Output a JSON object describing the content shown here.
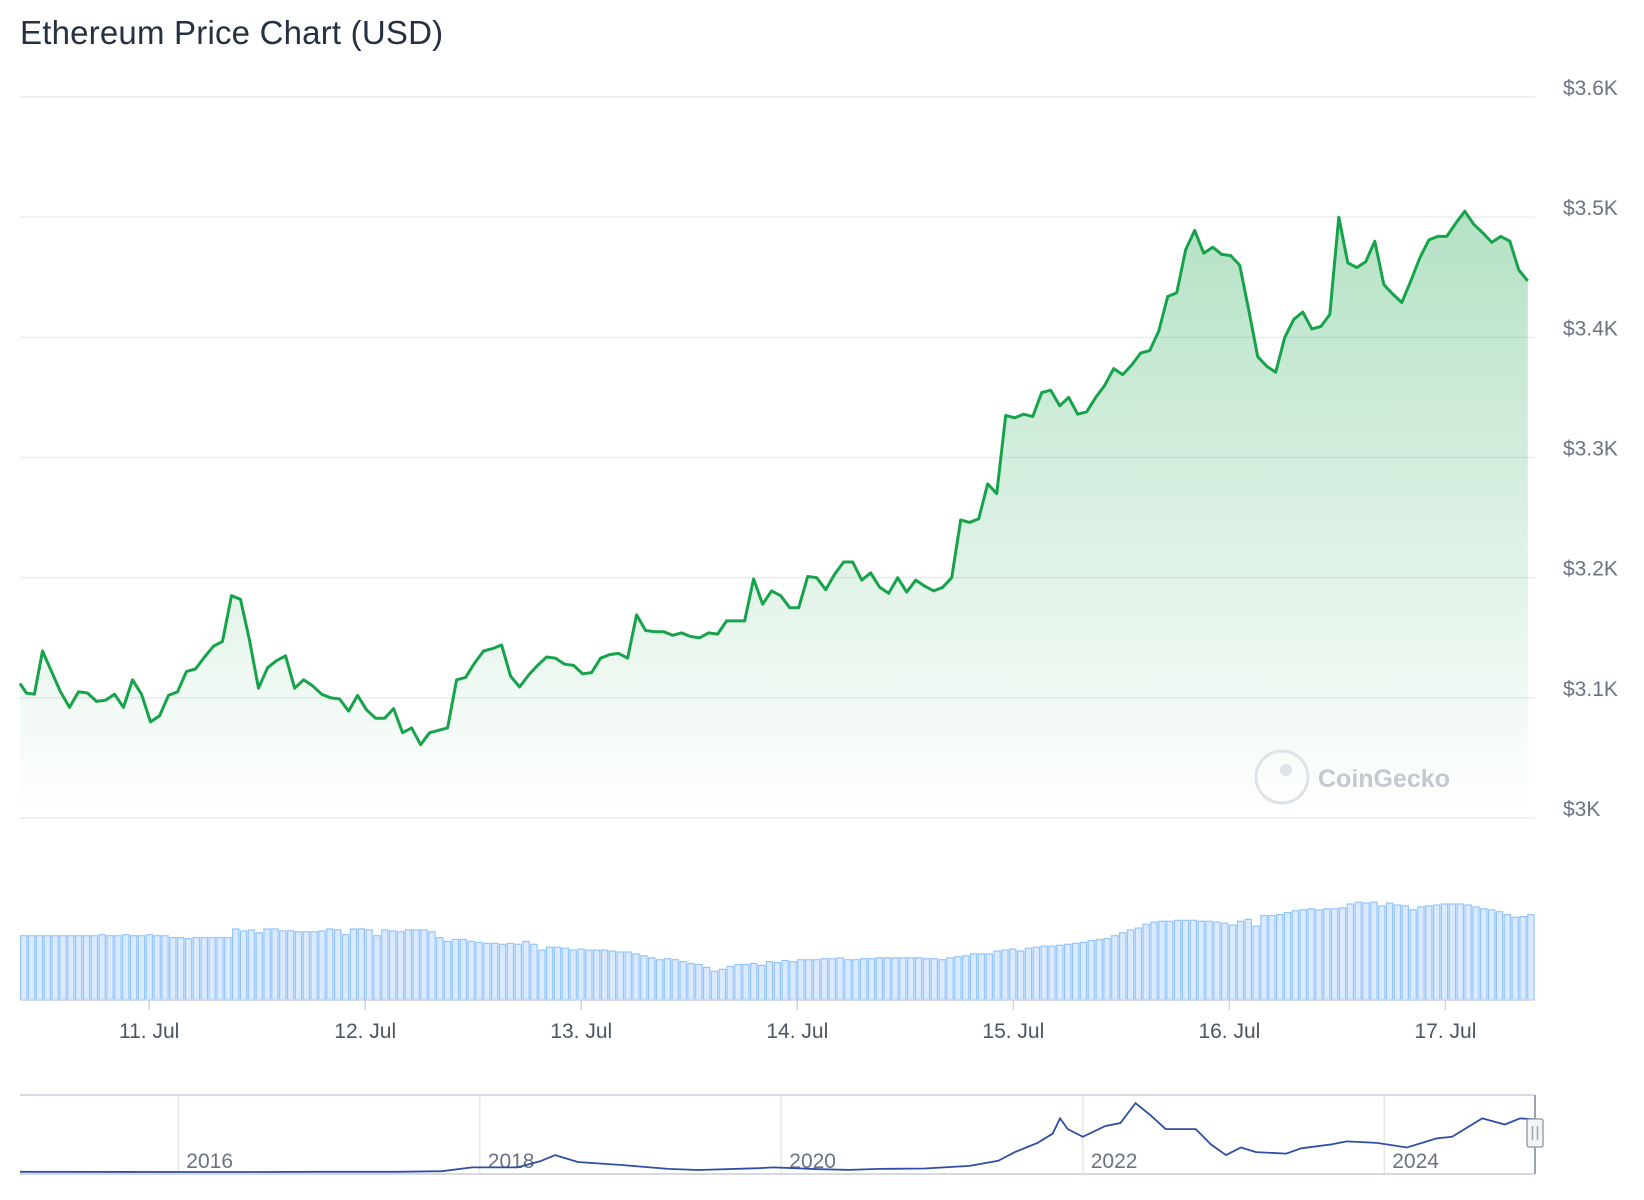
{
  "title": "Ethereum Price Chart (USD)",
  "watermark": "CoinGecko",
  "chart_data": {
    "type": "area",
    "title": "Ethereum Price Chart (USD)",
    "xlabel": "",
    "ylabel": "",
    "ylim": [
      3000,
      3600
    ],
    "y_ticks": [
      {
        "value": 3600,
        "label": "$3.6K"
      },
      {
        "value": 3500,
        "label": "$3.5K"
      },
      {
        "value": 3400,
        "label": "$3.4K"
      },
      {
        "value": 3300,
        "label": "$3.3K"
      },
      {
        "value": 3200,
        "label": "$3.2K"
      },
      {
        "value": 3100,
        "label": "$3.1K"
      },
      {
        "value": 3000,
        "label": "$3K"
      }
    ],
    "x_ticks": [
      {
        "label": "11. Jul",
        "t": 23.35
      },
      {
        "label": "12. Jul",
        "t": 47.35
      },
      {
        "label": "13. Jul",
        "t": 71.35
      },
      {
        "label": "14. Jul",
        "t": 95.35
      },
      {
        "label": "15. Jul",
        "t": 119.35
      },
      {
        "label": "16. Jul",
        "t": 143.35
      },
      {
        "label": "17. Jul",
        "t": 167.35
      }
    ],
    "x_range_hours": [
      9.0,
      177.3
    ],
    "series": [
      {
        "color": "#16a34a",
        "points": [
          [
            9.0,
            3112
          ],
          [
            9.7,
            3104
          ],
          [
            10.6,
            3103
          ],
          [
            11.5,
            3139
          ],
          [
            13.5,
            3105
          ],
          [
            14.5,
            3092
          ],
          [
            15.5,
            3105
          ],
          [
            16.5,
            3104
          ],
          [
            17.5,
            3097
          ],
          [
            18.5,
            3098
          ],
          [
            19.5,
            3103
          ],
          [
            20.5,
            3092
          ],
          [
            21.5,
            3115
          ],
          [
            22.5,
            3103
          ],
          [
            23.5,
            3080
          ],
          [
            24.5,
            3085
          ],
          [
            25.5,
            3102
          ],
          [
            26.5,
            3105
          ],
          [
            27.5,
            3122
          ],
          [
            28.5,
            3124
          ],
          [
            29.5,
            3134
          ],
          [
            30.5,
            3143
          ],
          [
            31.5,
            3147
          ],
          [
            32.5,
            3185
          ],
          [
            33.5,
            3182
          ],
          [
            34.5,
            3148
          ],
          [
            35.5,
            3108
          ],
          [
            36.5,
            3125
          ],
          [
            37.5,
            3131
          ],
          [
            38.5,
            3135
          ],
          [
            39.5,
            3108
          ],
          [
            40.5,
            3115
          ],
          [
            41.5,
            3110
          ],
          [
            42.5,
            3103
          ],
          [
            43.5,
            3100
          ],
          [
            44.5,
            3099
          ],
          [
            45.5,
            3089
          ],
          [
            46.5,
            3102
          ],
          [
            47.5,
            3090
          ],
          [
            48.5,
            3083
          ],
          [
            49.5,
            3083
          ],
          [
            50.5,
            3091
          ],
          [
            51.5,
            3071
          ],
          [
            52.5,
            3075
          ],
          [
            53.5,
            3061
          ],
          [
            54.5,
            3071
          ],
          [
            55.5,
            3073
          ],
          [
            56.5,
            3075
          ],
          [
            57.5,
            3115
          ],
          [
            58.5,
            3117
          ],
          [
            59.5,
            3129
          ],
          [
            60.5,
            3139
          ],
          [
            61.5,
            3141
          ],
          [
            62.5,
            3144
          ],
          [
            63.5,
            3118
          ],
          [
            64.5,
            3109
          ],
          [
            65.5,
            3119
          ],
          [
            66.5,
            3127
          ],
          [
            67.5,
            3134
          ],
          [
            68.5,
            3133
          ],
          [
            69.5,
            3128
          ],
          [
            70.5,
            3127
          ],
          [
            71.5,
            3120
          ],
          [
            72.5,
            3121
          ],
          [
            73.5,
            3133
          ],
          [
            74.5,
            3136
          ],
          [
            75.5,
            3137
          ],
          [
            76.5,
            3133
          ],
          [
            77.5,
            3169
          ],
          [
            78.5,
            3156
          ],
          [
            79.5,
            3155
          ],
          [
            80.5,
            3155
          ],
          [
            81.5,
            3152
          ],
          [
            82.5,
            3154
          ],
          [
            83.5,
            3151
          ],
          [
            84.5,
            3150
          ],
          [
            85.5,
            3154
          ],
          [
            86.5,
            3153
          ],
          [
            87.5,
            3164
          ],
          [
            88.5,
            3164
          ],
          [
            89.5,
            3164
          ],
          [
            90.5,
            3199
          ],
          [
            91.5,
            3178
          ],
          [
            92.5,
            3189
          ],
          [
            93.5,
            3185
          ],
          [
            94.5,
            3175
          ],
          [
            95.5,
            3175
          ],
          [
            96.5,
            3201
          ],
          [
            97.5,
            3200
          ],
          [
            98.5,
            3190
          ],
          [
            99.5,
            3203
          ],
          [
            100.5,
            3213
          ],
          [
            101.5,
            3213
          ],
          [
            102.5,
            3198
          ],
          [
            103.5,
            3204
          ],
          [
            104.5,
            3192
          ],
          [
            105.5,
            3187
          ],
          [
            106.5,
            3200
          ],
          [
            107.5,
            3188
          ],
          [
            108.5,
            3198
          ],
          [
            109.5,
            3193
          ],
          [
            110.5,
            3189
          ],
          [
            111.5,
            3192
          ],
          [
            112.5,
            3200
          ],
          [
            113.5,
            3248
          ],
          [
            114.5,
            3246
          ],
          [
            115.5,
            3249
          ],
          [
            116.5,
            3278
          ],
          [
            117.5,
            3270
          ],
          [
            118.5,
            3335
          ],
          [
            119.5,
            3333
          ],
          [
            120.5,
            3336
          ],
          [
            121.5,
            3334
          ],
          [
            122.5,
            3354
          ],
          [
            123.5,
            3356
          ],
          [
            124.5,
            3343
          ],
          [
            125.5,
            3350
          ],
          [
            126.5,
            3336
          ],
          [
            127.5,
            3338
          ],
          [
            128.5,
            3350
          ],
          [
            129.5,
            3360
          ],
          [
            130.5,
            3374
          ],
          [
            131.5,
            3369
          ],
          [
            132.5,
            3377
          ],
          [
            133.5,
            3387
          ],
          [
            134.5,
            3389
          ],
          [
            135.5,
            3405
          ],
          [
            136.5,
            3434
          ],
          [
            137.5,
            3437
          ],
          [
            138.5,
            3473
          ],
          [
            139.5,
            3489
          ],
          [
            140.5,
            3470
          ],
          [
            141.5,
            3475
          ],
          [
            142.5,
            3469
          ],
          [
            143.5,
            3468
          ],
          [
            144.5,
            3460
          ],
          [
            145.5,
            3423
          ],
          [
            146.5,
            3384
          ],
          [
            147.5,
            3376
          ],
          [
            148.5,
            3371
          ],
          [
            149.5,
            3400
          ],
          [
            150.5,
            3415
          ],
          [
            151.5,
            3421
          ],
          [
            152.5,
            3407
          ],
          [
            153.5,
            3409
          ],
          [
            154.5,
            3419
          ],
          [
            155.5,
            3500
          ],
          [
            156.5,
            3462
          ],
          [
            157.5,
            3458
          ],
          [
            158.5,
            3463
          ],
          [
            159.5,
            3480
          ],
          [
            160.5,
            3444
          ],
          [
            161.5,
            3436
          ],
          [
            162.5,
            3429
          ],
          [
            163.5,
            3447
          ],
          [
            164.5,
            3466
          ],
          [
            165.5,
            3481
          ],
          [
            166.5,
            3484
          ],
          [
            167.5,
            3484
          ],
          [
            168.5,
            3495
          ],
          [
            169.5,
            3505
          ],
          [
            170.5,
            3494
          ],
          [
            171.5,
            3487
          ],
          [
            172.5,
            3479
          ],
          [
            173.5,
            3484
          ],
          [
            174.5,
            3480
          ],
          [
            175.5,
            3456
          ],
          [
            176.5,
            3447
          ]
        ]
      }
    ],
    "volume": {
      "color": "#93c5fd",
      "values": [
        0.67,
        0.67,
        0.67,
        0.67,
        0.67,
        0.67,
        0.67,
        0.67,
        0.67,
        0.67,
        0.68,
        0.67,
        0.67,
        0.68,
        0.67,
        0.67,
        0.68,
        0.67,
        0.67,
        0.65,
        0.65,
        0.64,
        0.65,
        0.65,
        0.65,
        0.65,
        0.65,
        0.74,
        0.72,
        0.73,
        0.7,
        0.74,
        0.74,
        0.72,
        0.72,
        0.71,
        0.71,
        0.71,
        0.72,
        0.74,
        0.73,
        0.68,
        0.74,
        0.74,
        0.73,
        0.67,
        0.73,
        0.72,
        0.71,
        0.73,
        0.73,
        0.73,
        0.71,
        0.65,
        0.61,
        0.63,
        0.63,
        0.61,
        0.6,
        0.59,
        0.59,
        0.58,
        0.59,
        0.58,
        0.61,
        0.58,
        0.52,
        0.55,
        0.55,
        0.54,
        0.52,
        0.53,
        0.52,
        0.52,
        0.52,
        0.51,
        0.5,
        0.5,
        0.48,
        0.46,
        0.44,
        0.42,
        0.43,
        0.42,
        0.4,
        0.38,
        0.37,
        0.34,
        0.3,
        0.32,
        0.35,
        0.37,
        0.37,
        0.38,
        0.36,
        0.4,
        0.39,
        0.41,
        0.4,
        0.42,
        0.42,
        0.42,
        0.43,
        0.43,
        0.44,
        0.42,
        0.42,
        0.43,
        0.43,
        0.44,
        0.44,
        0.44,
        0.44,
        0.44,
        0.44,
        0.43,
        0.43,
        0.42,
        0.44,
        0.45,
        0.46,
        0.48,
        0.48,
        0.48,
        0.51,
        0.52,
        0.53,
        0.51,
        0.54,
        0.55,
        0.56,
        0.56,
        0.57,
        0.58,
        0.59,
        0.6,
        0.62,
        0.63,
        0.64,
        0.67,
        0.7,
        0.73,
        0.75,
        0.79,
        0.81,
        0.82,
        0.82,
        0.83,
        0.83,
        0.83,
        0.82,
        0.82,
        0.81,
        0.8,
        0.78,
        0.82,
        0.84,
        0.77,
        0.88,
        0.88,
        0.89,
        0.91,
        0.93,
        0.94,
        0.95,
        0.94,
        0.95,
        0.95,
        0.96,
        1.0,
        1.02,
        1.01,
        1.02,
        0.98,
        1.01,
        0.99,
        0.98,
        0.94,
        0.97,
        0.98,
        0.99,
        1.0,
        1.0,
        1.0,
        0.99,
        0.97,
        0.95,
        0.94,
        0.92,
        0.89,
        0.86,
        0.87,
        0.89
      ]
    },
    "navigator": {
      "color": "#2e4fa3",
      "x_ticks": [
        "2016",
        "2018",
        "2020",
        "2022",
        "2024"
      ],
      "x_tick_years": [
        2016,
        2018,
        2020,
        2022,
        2024
      ],
      "x_range_years": [
        2014.5,
        2024.55
      ],
      "points": [
        [
          2014.5,
          10
        ],
        [
          2015.6,
          1
        ],
        [
          2016.0,
          1
        ],
        [
          2016.5,
          12
        ],
        [
          2017.0,
          10
        ],
        [
          2017.3,
          50
        ],
        [
          2017.5,
          300
        ],
        [
          2017.8,
          300
        ],
        [
          2017.95,
          700
        ],
        [
          2018.05,
          1100
        ],
        [
          2018.2,
          650
        ],
        [
          2018.5,
          450
        ],
        [
          2018.8,
          200
        ],
        [
          2019.0,
          130
        ],
        [
          2019.4,
          250
        ],
        [
          2019.5,
          300
        ],
        [
          2019.8,
          180
        ],
        [
          2020.0,
          140
        ],
        [
          2020.2,
          200
        ],
        [
          2020.5,
          230
        ],
        [
          2020.8,
          400
        ],
        [
          2020.99,
          730
        ],
        [
          2021.1,
          1300
        ],
        [
          2021.25,
          1900
        ],
        [
          2021.35,
          2500
        ],
        [
          2021.4,
          3500
        ],
        [
          2021.45,
          2800
        ],
        [
          2021.55,
          2300
        ],
        [
          2021.7,
          3000
        ],
        [
          2021.8,
          3200
        ],
        [
          2021.9,
          4500
        ],
        [
          2022.0,
          3700
        ],
        [
          2022.1,
          2800
        ],
        [
          2022.3,
          2800
        ],
        [
          2022.4,
          1800
        ],
        [
          2022.5,
          1100
        ],
        [
          2022.6,
          1600
        ],
        [
          2022.7,
          1300
        ],
        [
          2022.9,
          1200
        ],
        [
          2023.0,
          1550
        ],
        [
          2023.2,
          1800
        ],
        [
          2023.3,
          2000
        ],
        [
          2023.5,
          1900
        ],
        [
          2023.7,
          1600
        ],
        [
          2023.9,
          2200
        ],
        [
          2024.0,
          2300
        ],
        [
          2024.2,
          3500
        ],
        [
          2024.35,
          3100
        ],
        [
          2024.45,
          3500
        ],
        [
          2024.55,
          3440
        ]
      ]
    }
  }
}
